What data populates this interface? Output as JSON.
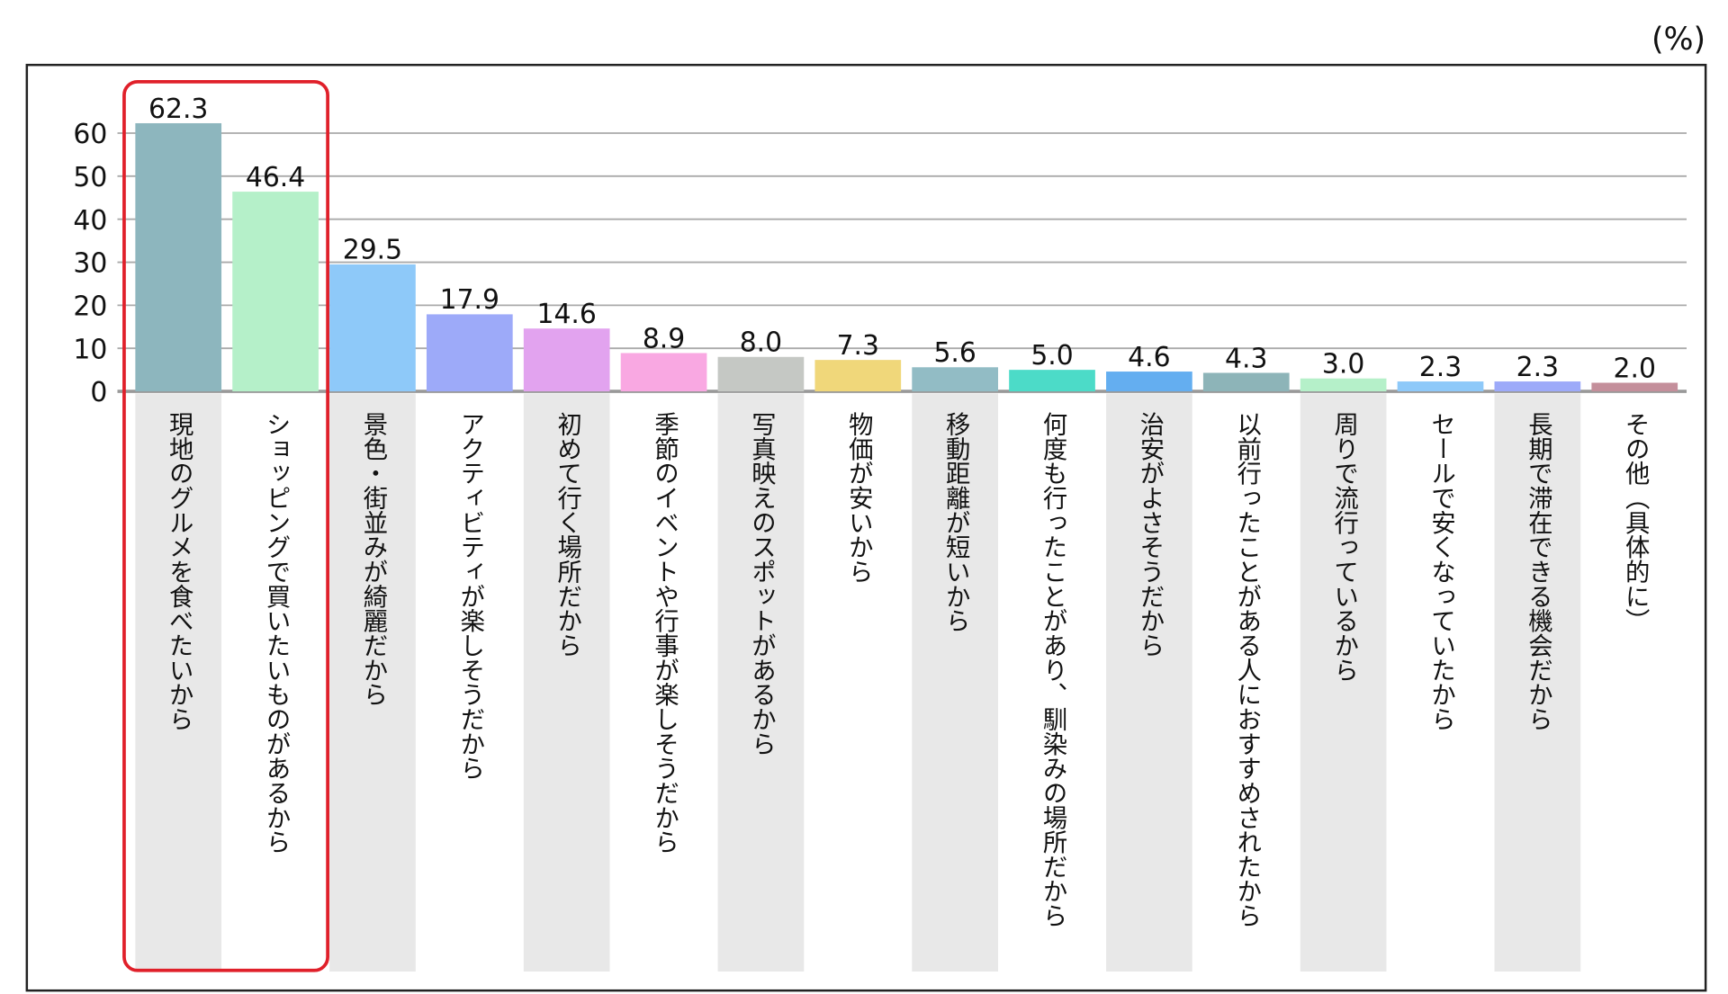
{
  "chart_data": {
    "type": "bar",
    "unit_label": "(%)",
    "categories": [
      "現地のグルメを食べたいから",
      "ショッピングで買いたいものがあるから",
      "景色・街並みが綺麗だから",
      "アクティビティが楽しそうだから",
      "初めて行く場所だから",
      "季節のイベントや行事が楽しそうだから",
      "写真映えのスポットがあるから",
      "物価が安いから",
      "移動距離が短いから",
      "何度も行ったことがあり、馴染みの場所だから",
      "治安がよさそうだから",
      "以前行ったことがある人におすすめされたから",
      "周りで流行っているから",
      "セールで安くなっていたから",
      "長期で滞在できる機会だから",
      "その他（具体的に）"
    ],
    "values": [
      62.3,
      46.4,
      29.5,
      17.9,
      14.6,
      8.9,
      8.0,
      7.3,
      5.6,
      5.0,
      4.6,
      4.3,
      3.0,
      2.3,
      2.3,
      2.0
    ],
    "value_labels": [
      "62.3",
      "46.4",
      "29.5",
      "17.9",
      "14.6",
      "8.9",
      "8.0",
      "7.3",
      "5.6",
      "5.0",
      "4.6",
      "4.3",
      "3.0",
      "2.3",
      "2.3",
      "2.0"
    ],
    "colors": [
      "#8db6be",
      "#b5f0c9",
      "#8ec9f9",
      "#9daaf9",
      "#e2a3ef",
      "#f9a8e2",
      "#c5c8c4",
      "#f0d77a",
      "#92bcc5",
      "#4cdbc8",
      "#64aef0",
      "#8db4b8",
      "#b5f0c9",
      "#8ec9f9",
      "#9daaf9",
      "#c48f9b"
    ],
    "yticks": [
      "0",
      "10",
      "20",
      "30",
      "40",
      "50",
      "60"
    ],
    "ylim": [
      0,
      60
    ],
    "grid": true,
    "highlight": {
      "categories_index": [
        0,
        1
      ],
      "color": "#e0202a"
    }
  }
}
